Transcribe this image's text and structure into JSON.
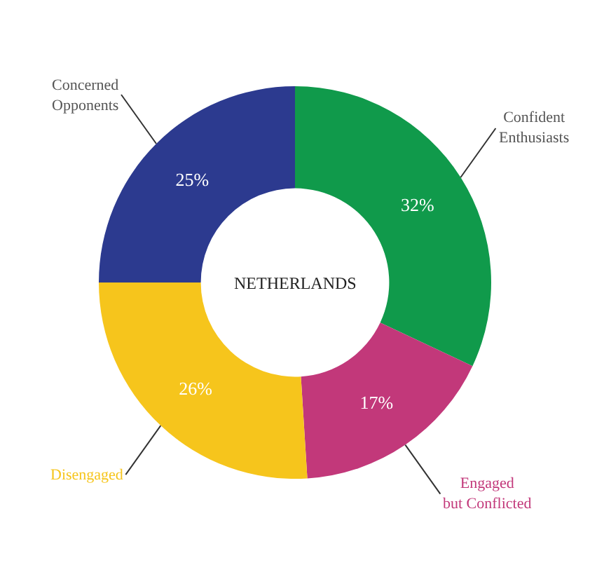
{
  "chart_data": {
    "type": "donut",
    "title": "NETHERLANDS",
    "categories": [
      "Confident Enthusiasts",
      "Engaged but Conflicted",
      "Disengaged",
      "Concerned Opponents"
    ],
    "values": [
      32,
      17,
      26,
      25
    ],
    "value_labels": [
      "32%",
      "17%",
      "26%",
      "25%"
    ],
    "colors": [
      "#109a4b",
      "#c2387a",
      "#f6c51c",
      "#2c3a8f"
    ],
    "legend": false
  }
}
